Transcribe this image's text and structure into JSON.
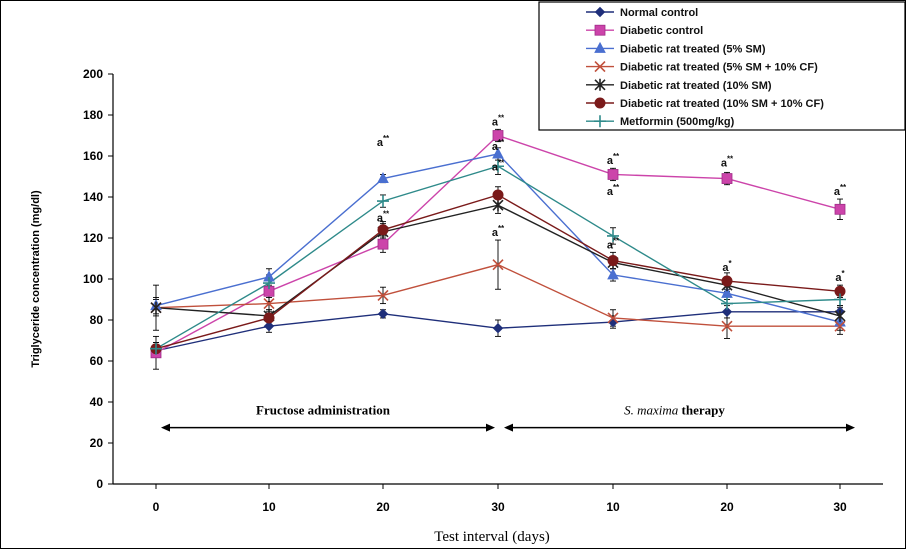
{
  "chart_data": {
    "type": "line",
    "title": "",
    "ylabel": "Triglyceride concentration (mg/dl)",
    "xlabel": "Test interval (days)",
    "ylim": [
      0,
      200
    ],
    "yticks": [
      "0",
      "20",
      "40",
      "60",
      "80",
      "100",
      "120",
      "140",
      "160",
      "180",
      "200"
    ],
    "categories": [
      "0",
      "10",
      "20",
      "30",
      "10",
      "20",
      "30"
    ],
    "phases": [
      {
        "label": "Fructose administration",
        "from": 0,
        "to": 3
      },
      {
        "label": "S. maxima",
        "suffix": "therapy",
        "from": 3,
        "to": 6
      }
    ],
    "series": [
      {
        "name": "Normal control",
        "color": "#1f2f7a",
        "marker": "diamond",
        "values": [
          65,
          77,
          83,
          76,
          79,
          84,
          84
        ],
        "errors": [
          3,
          3,
          2,
          4,
          3,
          3,
          3
        ]
      },
      {
        "name": "Diabetic control",
        "color": "#cc44aa",
        "marker": "square",
        "values": [
          64,
          94,
          117,
          170,
          151,
          149,
          134
        ],
        "errors": [
          8,
          5,
          4,
          3,
          3,
          3,
          5
        ]
      },
      {
        "name": "Diabetic rat treated (5% SM)",
        "color": "#4a6fd0",
        "marker": "triangle",
        "values": [
          87,
          101,
          149,
          161,
          102,
          93,
          79
        ],
        "errors": [
          4,
          4,
          2,
          3,
          3,
          3,
          4
        ]
      },
      {
        "name": "Diabetic rat treated  (5% SM + 10% CF)",
        "color": "#c0503c",
        "marker": "x",
        "values": [
          86,
          88,
          92,
          107,
          81,
          77,
          77
        ],
        "errors": [
          4,
          3,
          4,
          12,
          4,
          6,
          4
        ]
      },
      {
        "name": "Diabetic rat treated (10% SM)",
        "color": "#222222",
        "marker": "star",
        "values": [
          86,
          82,
          123,
          136,
          108,
          97,
          82
        ],
        "errors": [
          11,
          3,
          4,
          4,
          3,
          3,
          4
        ]
      },
      {
        "name": "Diabetic rat treated (10% SM + 10% CF)",
        "color": "#7a1a1a",
        "marker": "circle",
        "values": [
          66,
          81,
          124,
          141,
          109,
          99,
          94
        ],
        "errors": [
          3,
          3,
          4,
          4,
          4,
          4,
          3
        ]
      },
      {
        "name": "Metformin (500mg/kg)",
        "color": "#2e8a8a",
        "marker": "plus",
        "values": [
          66,
          98,
          138,
          155,
          121,
          88,
          90
        ],
        "errors": [
          3,
          4,
          3,
          4,
          4,
          4,
          3
        ]
      }
    ],
    "annotations": [
      {
        "text": "a",
        "sup": "**",
        "x": 2,
        "y": 165
      },
      {
        "text": "a",
        "sup": "**",
        "x": 2,
        "y": 128
      },
      {
        "text": "a",
        "sup": "**",
        "x": 3,
        "y": 175
      },
      {
        "text": "a",
        "sup": "**",
        "x": 3,
        "y": 163
      },
      {
        "text": "a",
        "sup": "**",
        "x": 3,
        "y": 153
      },
      {
        "text": "a",
        "sup": "**",
        "x": 3,
        "y": 121
      },
      {
        "text": "a",
        "sup": "**",
        "x": 4,
        "y": 156
      },
      {
        "text": "a",
        "sup": "**",
        "x": 4,
        "y": 141
      },
      {
        "text": "a",
        "sup": "**",
        "x": 4,
        "y": 115
      },
      {
        "text": "a",
        "sup": "**",
        "x": 5,
        "y": 155
      },
      {
        "text": "a",
        "sup": "*",
        "x": 5,
        "y": 104
      },
      {
        "text": "a",
        "sup": "**",
        "x": 6,
        "y": 141
      },
      {
        "text": "a",
        "sup": "*",
        "x": 6,
        "y": 99
      }
    ],
    "legend_position": "top-right",
    "grid": false
  }
}
